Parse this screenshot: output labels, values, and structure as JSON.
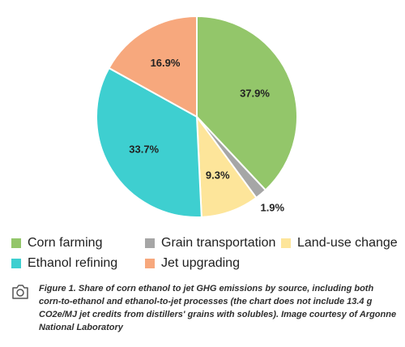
{
  "chart_data": {
    "type": "pie",
    "slices": [
      {
        "label": "Corn farming",
        "value": 37.9,
        "color": "#93c66a",
        "value_label": "37.9%"
      },
      {
        "label": "Grain transportation",
        "value": 1.9,
        "color": "#a6a6a6",
        "value_label": "1.9%"
      },
      {
        "label": "Land-use change",
        "value": 9.3,
        "color": "#fde59a",
        "value_label": "9.3%"
      },
      {
        "label": "Ethanol refining",
        "value": 33.7,
        "color": "#3ecfd0",
        "value_label": "33.7%"
      },
      {
        "label": "Jet upgrading",
        "value": 16.9,
        "color": "#f7a87d",
        "value_label": "16.9%"
      }
    ],
    "legend": [
      {
        "label": "Corn farming",
        "color": "#93c66a"
      },
      {
        "label": "Grain transportation",
        "color": "#a6a6a6"
      },
      {
        "label": "Land-use change",
        "color": "#fde59a"
      },
      {
        "label": "Ethanol refining",
        "color": "#3ecfd0"
      },
      {
        "label": "Jet upgrading",
        "color": "#f7a87d"
      }
    ],
    "legend_placement": "bottom"
  },
  "caption": "Figure 1. Share of corn ethanol to jet GHG emissions by source, including both corn-to-ethanol and ethanol-to-jet processes (the chart does not include 13.4 g CO2e/MJ jet credits from distillers' grains with solubles). Image courtesy of Argonne National Laboratory",
  "icons": {
    "caption": "camera-icon"
  }
}
